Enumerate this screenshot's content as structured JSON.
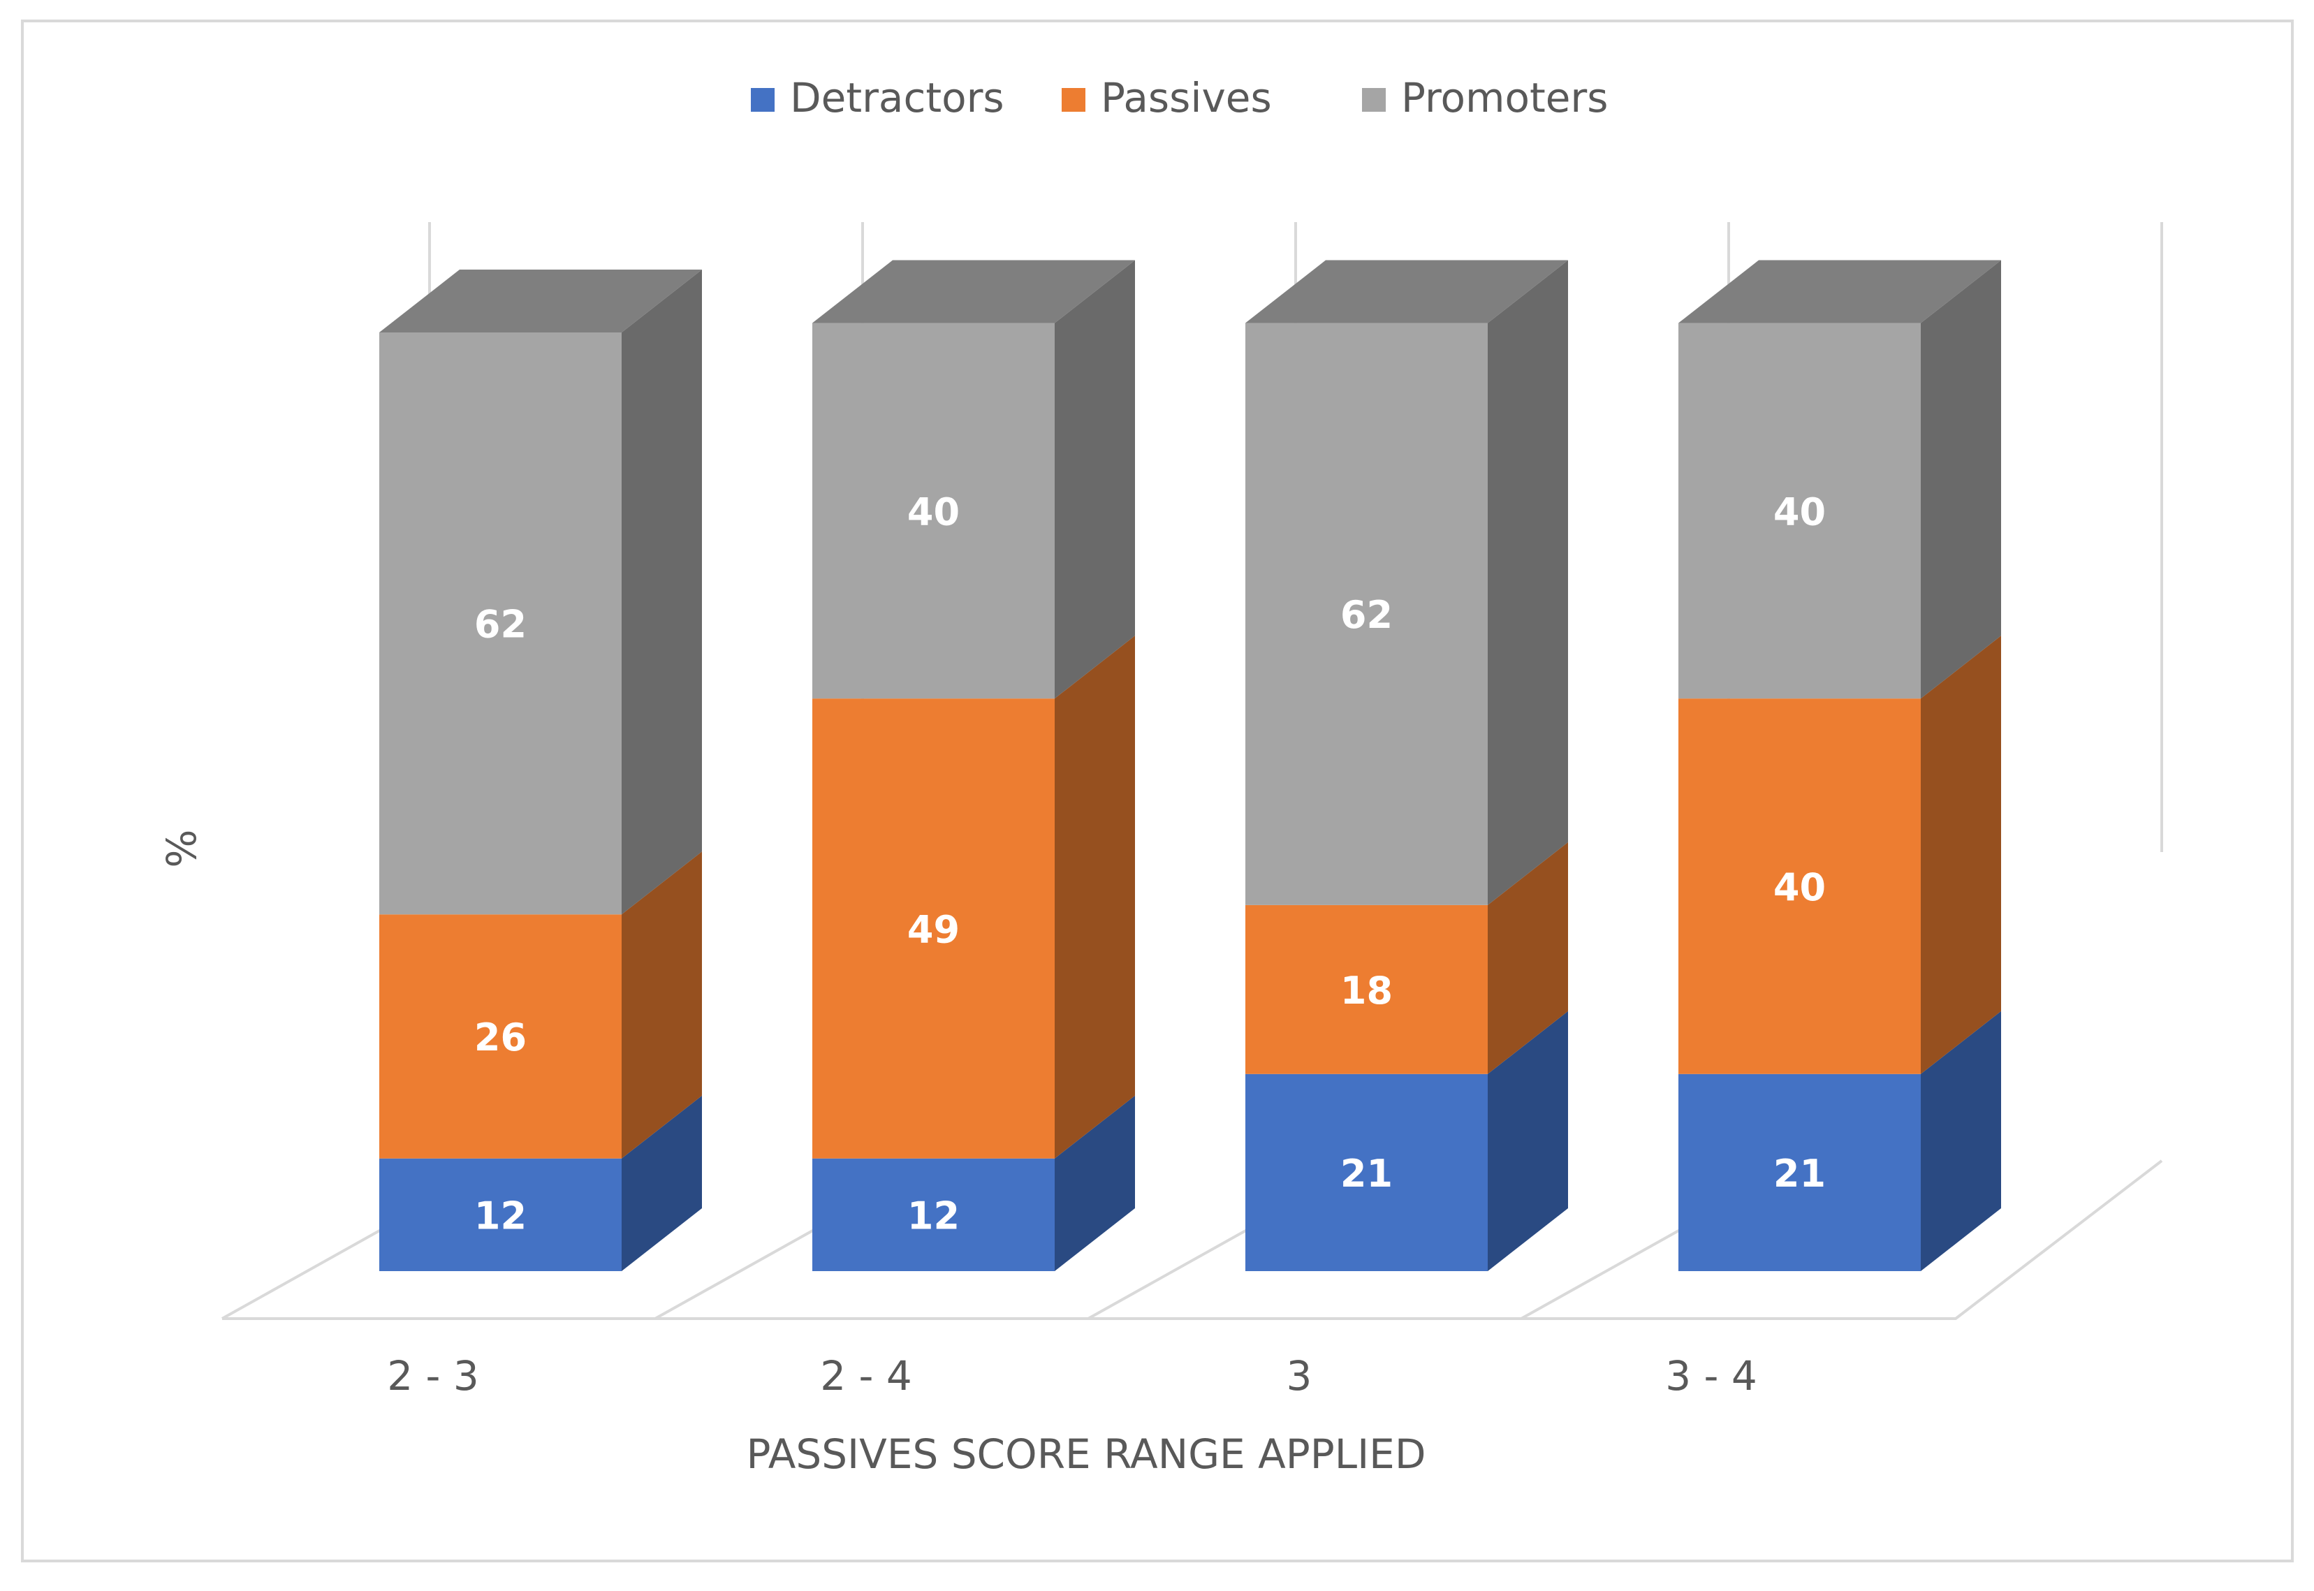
{
  "chart_data": {
    "type": "bar",
    "subtype": "stacked-3d",
    "title": "",
    "xlabel": "PASSIVES SCORE RANGE APPLIED",
    "ylabel": "%",
    "categories": [
      "2 - 3",
      "2 - 4",
      "3",
      "3 - 4"
    ],
    "series": [
      {
        "name": "Detractors",
        "values": [
          12,
          12,
          21,
          21
        ]
      },
      {
        "name": "Passives",
        "values": [
          26,
          49,
          18,
          40
        ]
      },
      {
        "name": "Promoters",
        "values": [
          62,
          40,
          62,
          40
        ]
      }
    ],
    "ylim": [
      0,
      100
    ],
    "legend_position": "top-center",
    "grid": false,
    "colors": {
      "Detractors": {
        "front": "#4472C4",
        "side": "#2A4A82"
      },
      "Passives": {
        "front": "#ED7D31",
        "side": "#96501F"
      },
      "Promoters": {
        "front": "#A5A5A5",
        "side": "#6A6A6A",
        "top": "#7F7F7F"
      }
    }
  }
}
